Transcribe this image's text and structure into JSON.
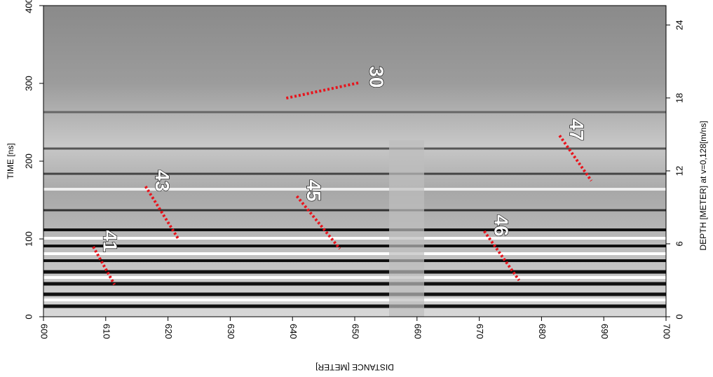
{
  "chart_data": {
    "type": "radargram",
    "xlabel": "DISTANCE [METER]",
    "ylabel": "TIME [ns]",
    "y2label": "DEPTH [METER] at v=0,128[m/ns]",
    "xlim": [
      600,
      700
    ],
    "xticks": [
      600,
      610,
      620,
      630,
      640,
      650,
      660,
      670,
      680,
      690,
      700
    ],
    "ylim": [
      0,
      400
    ],
    "yticks": [
      0,
      100,
      200,
      300,
      400
    ],
    "y2lim": [
      0,
      25.6
    ],
    "y2ticks": [
      0,
      6,
      12,
      18,
      24
    ],
    "annotations": [
      {
        "text": "30",
        "x": [
          639.0,
          650.8
        ],
        "y": [
          281,
          301
        ],
        "color": "#e8141c"
      },
      {
        "text": "41",
        "x": [
          608.0,
          611.4
        ],
        "y": [
          90,
          41.4
        ],
        "color": "#e8141c"
      },
      {
        "text": "43",
        "x": [
          616.4,
          621.6
        ],
        "y": [
          167.6,
          100.9
        ],
        "color": "#e8141c"
      },
      {
        "text": "45",
        "x": [
          640.7,
          647.6
        ],
        "y": [
          155,
          87.4
        ],
        "color": "#e8141c"
      },
      {
        "text": "46",
        "x": [
          670.8,
          676.4
        ],
        "y": [
          110,
          46.8
        ],
        "color": "#e8141c"
      },
      {
        "text": "47",
        "x": [
          682.9,
          688.0
        ],
        "y": [
          233,
          174.8
        ],
        "color": "#e8141c"
      }
    ]
  }
}
